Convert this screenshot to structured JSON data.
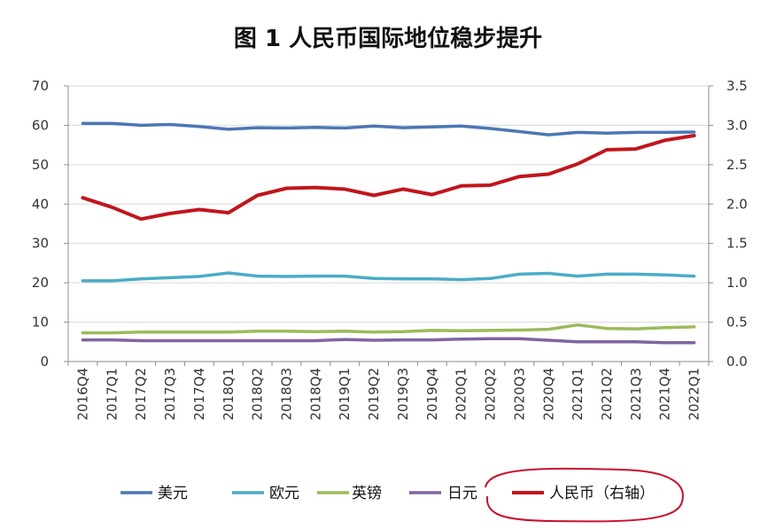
{
  "chart_data": {
    "type": "line",
    "title": "图 1 人民币国际地位稳步提升",
    "categories": [
      "2016Q4",
      "2017Q1",
      "2017Q2",
      "2017Q3",
      "2017Q4",
      "2018Q1",
      "2018Q2",
      "2018Q3",
      "2018Q4",
      "2019Q1",
      "2019Q2",
      "2019Q3",
      "2019Q4",
      "2020Q1",
      "2020Q2",
      "2020Q3",
      "2020Q4",
      "2021Q1",
      "2021Q2",
      "2021Q3",
      "2021Q4",
      "2022Q1"
    ],
    "y_left": {
      "ylim": [
        0,
        70
      ],
      "ticks": [
        "0",
        "10",
        "20",
        "30",
        "40",
        "50",
        "60",
        "70"
      ]
    },
    "y_right": {
      "ylim": [
        0,
        3.5
      ],
      "ticks": [
        "0.0",
        "0.5",
        "1.0",
        "1.5",
        "2.0",
        "2.5",
        "3.0",
        "3.5"
      ]
    },
    "grid": true,
    "legend_position": "bottom",
    "series": [
      {
        "name": "美元",
        "axis": "left",
        "color": "#4a77b4",
        "values": [
          60.5,
          60.5,
          60.0,
          60.2,
          59.7,
          59.0,
          59.4,
          59.3,
          59.5,
          59.3,
          59.8,
          59.4,
          59.6,
          59.8,
          59.2,
          58.4,
          57.6,
          58.2,
          58.0,
          58.2,
          58.2,
          58.3
        ]
      },
      {
        "name": "欧元",
        "axis": "left",
        "color": "#4bacc6",
        "values": [
          20.5,
          20.5,
          21.0,
          21.3,
          21.6,
          22.5,
          21.7,
          21.6,
          21.7,
          21.7,
          21.1,
          21.0,
          21.0,
          20.8,
          21.1,
          22.2,
          22.4,
          21.7,
          22.2,
          22.2,
          22.0,
          21.7
        ]
      },
      {
        "name": "英镑",
        "axis": "left",
        "color": "#9bbb59",
        "values": [
          7.3,
          7.3,
          7.5,
          7.5,
          7.5,
          7.5,
          7.7,
          7.7,
          7.6,
          7.7,
          7.5,
          7.6,
          7.9,
          7.8,
          7.9,
          8.0,
          8.2,
          9.3,
          8.4,
          8.3,
          8.6,
          8.8
        ]
      },
      {
        "name": "日元",
        "axis": "left",
        "color": "#8064a2",
        "values": [
          5.5,
          5.5,
          5.3,
          5.3,
          5.3,
          5.3,
          5.3,
          5.3,
          5.3,
          5.6,
          5.4,
          5.5,
          5.5,
          5.7,
          5.8,
          5.8,
          5.4,
          5.0,
          5.0,
          5.0,
          4.8,
          4.8
        ]
      },
      {
        "name": "人民币（右轴）",
        "axis": "right",
        "color": "#c0161c",
        "values": [
          2.08,
          1.96,
          1.81,
          1.88,
          1.93,
          1.89,
          2.11,
          2.2,
          2.21,
          2.19,
          2.11,
          2.19,
          2.12,
          2.23,
          2.24,
          2.35,
          2.38,
          2.51,
          2.69,
          2.7,
          2.81,
          2.87
        ]
      }
    ]
  },
  "legend": {
    "highlight_color": "#c8102e"
  }
}
